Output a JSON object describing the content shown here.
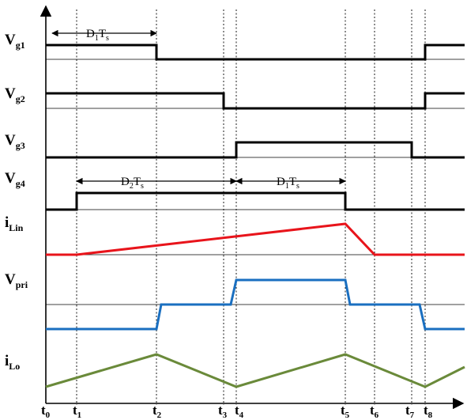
{
  "signals": {
    "vg1": {
      "base": "V",
      "sub": "g1"
    },
    "vg2": {
      "base": "V",
      "sub": "g2"
    },
    "vg3": {
      "base": "V",
      "sub": "g3"
    },
    "vg4": {
      "base": "V",
      "sub": "g4"
    },
    "ilin": {
      "base": "i",
      "sub": "Lin",
      "color": "#e8141b"
    },
    "vpri": {
      "base": "V",
      "sub": "pri",
      "color": "#1a6fc0"
    },
    "ilo": {
      "base": "i",
      "sub": "Lo",
      "color": "#6a8a3a"
    }
  },
  "time_labels": [
    {
      "base": "t",
      "sub": "0"
    },
    {
      "base": "t",
      "sub": "1"
    },
    {
      "base": "t",
      "sub": "2"
    },
    {
      "base": "t",
      "sub": "3"
    },
    {
      "base": "t",
      "sub": "4"
    },
    {
      "base": "t",
      "sub": "5"
    },
    {
      "base": "t",
      "sub": "6"
    },
    {
      "base": "t",
      "sub": "7"
    },
    {
      "base": "t",
      "sub": "8"
    }
  ],
  "annotations": {
    "d1ts_top": {
      "d": "D",
      "dsub": "1",
      "t": "T",
      "tsub": "s"
    },
    "d2ts": {
      "d": "D",
      "dsub": "2",
      "t": "T",
      "tsub": "s"
    },
    "d1ts_mid": {
      "d": "D",
      "dsub": "1",
      "t": "T",
      "tsub": "s"
    }
  }
}
